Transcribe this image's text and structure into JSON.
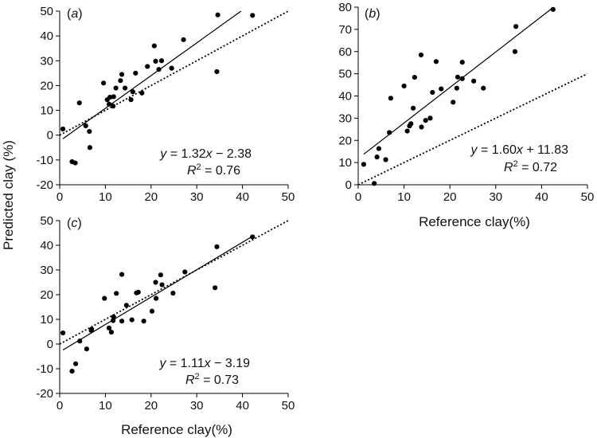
{
  "y_axis_title": "Predicted clay (%)",
  "chart_data": [
    {
      "panel": "(a)",
      "type": "scatter",
      "xlabel": "",
      "xlim": [
        0,
        50
      ],
      "ylim": [
        -20,
        50
      ],
      "xticks": [
        0,
        10,
        20,
        30,
        40,
        50
      ],
      "yticks": [
        -20,
        -10,
        0,
        10,
        20,
        30,
        40,
        50
      ],
      "equation": {
        "y": "y",
        "x": "x",
        "rhs": " = 1.32",
        "tail": " − 2.38",
        "r2_var": "R",
        "r2_sup": "2",
        "r2_rhs": " = 0.76"
      },
      "fit": {
        "slope": 1.32,
        "intercept": -2.38
      },
      "one_to_one": true,
      "points": [
        [
          0.7,
          2.5
        ],
        [
          2.7,
          -10.7
        ],
        [
          3.4,
          -11.2
        ],
        [
          4.3,
          13
        ],
        [
          5.7,
          3.8
        ],
        [
          6.5,
          1.5
        ],
        [
          6.6,
          -5
        ],
        [
          9.6,
          21
        ],
        [
          10.4,
          14.3
        ],
        [
          10.8,
          12.5
        ],
        [
          11,
          15.3
        ],
        [
          11.7,
          11.7
        ],
        [
          11.8,
          15.5
        ],
        [
          12.3,
          19
        ],
        [
          13.3,
          22
        ],
        [
          13.6,
          24.5
        ],
        [
          14.3,
          19
        ],
        [
          15.6,
          14.3
        ],
        [
          16,
          17.5
        ],
        [
          16.6,
          25
        ],
        [
          18,
          17
        ],
        [
          19.2,
          27.7
        ],
        [
          20.7,
          36
        ],
        [
          21,
          29.8
        ],
        [
          21.7,
          26.5
        ],
        [
          22.3,
          30
        ],
        [
          24.5,
          27
        ],
        [
          27.1,
          38.5
        ],
        [
          34.4,
          25.6
        ],
        [
          34.6,
          48.5
        ],
        [
          42.2,
          48.3
        ]
      ]
    },
    {
      "panel": "(b)",
      "type": "scatter",
      "xlabel": "Reference clay(%)",
      "xlim": [
        0,
        50
      ],
      "ylim": [
        0,
        80
      ],
      "xticks": [
        0,
        10,
        20,
        30,
        40,
        50
      ],
      "yticks": [
        0,
        10,
        20,
        30,
        40,
        50,
        60,
        70,
        80
      ],
      "equation": {
        "y": "y",
        "x": "x",
        "rhs": " = 1.60",
        "tail": " + 11.83",
        "r2_var": "R",
        "r2_sup": "2",
        "r2_rhs": " = 0.72"
      },
      "fit": {
        "slope": 1.6,
        "intercept": 11.83
      },
      "one_to_one": true,
      "points": [
        [
          1.2,
          9.2
        ],
        [
          3.5,
          0.6
        ],
        [
          4.1,
          12.5
        ],
        [
          4.5,
          16.3
        ],
        [
          6,
          11.3
        ],
        [
          6.8,
          23.5
        ],
        [
          7.1,
          39
        ],
        [
          10,
          44.5
        ],
        [
          10.7,
          24.2
        ],
        [
          11.2,
          26.5
        ],
        [
          11.5,
          27.5
        ],
        [
          12,
          34.5
        ],
        [
          12.3,
          48.4
        ],
        [
          13.7,
          58.5
        ],
        [
          13.8,
          26
        ],
        [
          14.7,
          29
        ],
        [
          15.7,
          30
        ],
        [
          16.2,
          41.6
        ],
        [
          17,
          55.5
        ],
        [
          18.1,
          43.2
        ],
        [
          20.7,
          37.2
        ],
        [
          21.5,
          43.5
        ],
        [
          21.7,
          48.5
        ],
        [
          22.7,
          47.8
        ],
        [
          22.7,
          55.2
        ],
        [
          25.2,
          46.7
        ],
        [
          27.3,
          43.5
        ],
        [
          34.2,
          60
        ],
        [
          34.4,
          71.3
        ],
        [
          42.5,
          79
        ]
      ]
    },
    {
      "panel": "(c)",
      "type": "scatter",
      "xlabel": "Reference clay(%)",
      "xlim": [
        0,
        50
      ],
      "ylim": [
        -20,
        50
      ],
      "xticks": [
        0,
        10,
        20,
        30,
        40,
        50
      ],
      "yticks": [
        -20,
        -10,
        0,
        10,
        20,
        30,
        40,
        50
      ],
      "equation": {
        "y": "y",
        "x": "x",
        "rhs": " = 1.11",
        "tail": " − 3.19",
        "r2_var": "R",
        "r2_sup": "2",
        "r2_rhs": " = 0.73"
      },
      "fit": {
        "slope": 1.11,
        "intercept": -3.19
      },
      "one_to_one": true,
      "points": [
        [
          0.7,
          4.5
        ],
        [
          2.7,
          -11
        ],
        [
          3.5,
          -8
        ],
        [
          4.4,
          1.2
        ],
        [
          5.9,
          -2
        ],
        [
          6.9,
          5.5
        ],
        [
          7,
          6
        ],
        [
          9.8,
          18.5
        ],
        [
          10.8,
          6.5
        ],
        [
          11.3,
          4.8
        ],
        [
          11.7,
          9.5
        ],
        [
          11.8,
          11
        ],
        [
          12.4,
          20.5
        ],
        [
          13.6,
          28.2
        ],
        [
          13.6,
          9.3
        ],
        [
          14.6,
          15.7
        ],
        [
          15.8,
          9.8
        ],
        [
          16.8,
          20.7
        ],
        [
          17.2,
          21
        ],
        [
          18.4,
          9.3
        ],
        [
          20.2,
          13.3
        ],
        [
          21,
          25
        ],
        [
          21.1,
          18.5
        ],
        [
          22.1,
          28
        ],
        [
          22.4,
          24
        ],
        [
          24.8,
          20.6
        ],
        [
          27.4,
          29.2
        ],
        [
          34,
          22.8
        ],
        [
          34.4,
          39.4
        ],
        [
          42.2,
          43.4
        ]
      ]
    }
  ]
}
